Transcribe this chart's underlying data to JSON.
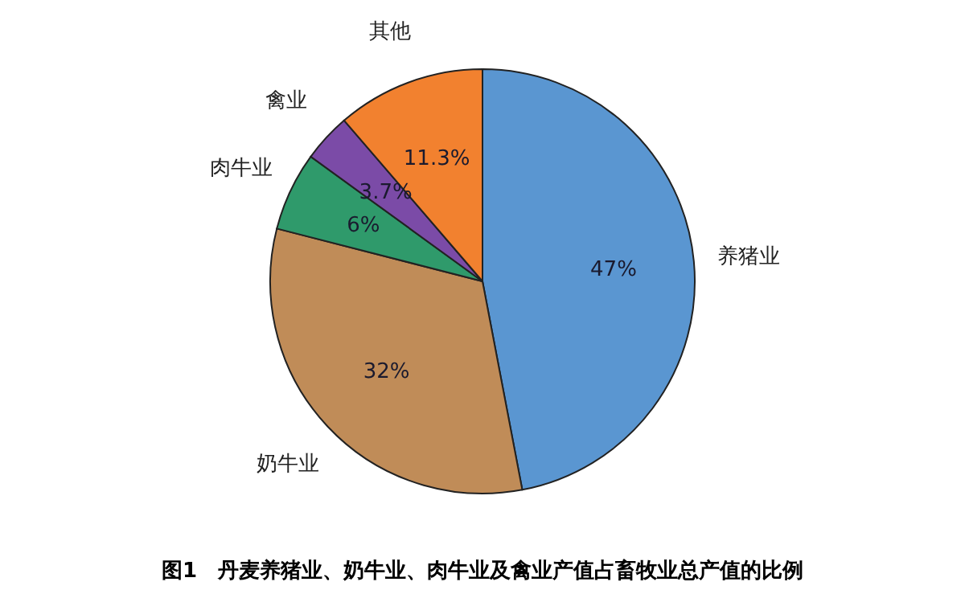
{
  "chart_data": {
    "type": "pie",
    "title": "图1　丹麦养猪业、奶牛业、肉牛业及禽业产值占畜牧业总产值的比例",
    "categories": [
      "养猪业",
      "奶牛业",
      "肉牛业",
      "禽业",
      "其他"
    ],
    "values": [
      47,
      32,
      6,
      3.7,
      11.3
    ],
    "value_labels": [
      "47%",
      "32%",
      "6%",
      "3.7%",
      "11.3%"
    ],
    "colors": [
      "#5a96d1",
      "#c08c58",
      "#2f9a6b",
      "#7b4ba7",
      "#f2812f"
    ],
    "legend": false
  }
}
